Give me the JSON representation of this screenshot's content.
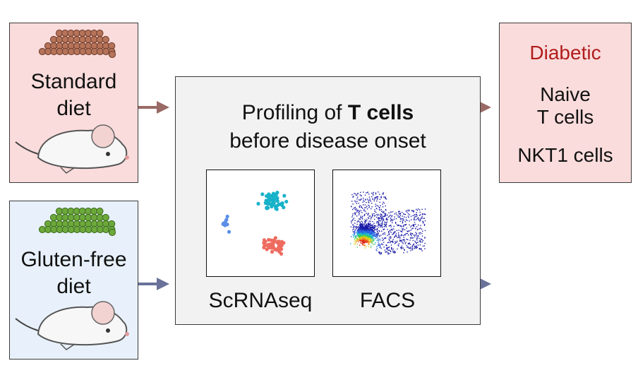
{
  "diets": [
    {
      "line1": "Standard",
      "line2": "diet",
      "pellet_color": "#b5735a",
      "pellet_edge": "#6e3b28"
    },
    {
      "line1": "Gluten-free",
      "line2": "diet",
      "pellet_color": "#6da83c",
      "pellet_edge": "#3b6b1c"
    }
  ],
  "profiling": {
    "title_prefix": "Profiling of ",
    "title_bold": "T cells",
    "title_line2": "before disease onset"
  },
  "methods": [
    {
      "label": "ScRNAseq"
    },
    {
      "label": "FACS"
    }
  ],
  "result": {
    "title": "Diabetic",
    "items": [
      "Naive",
      "T cells",
      "NKT1 cells"
    ]
  },
  "colors": {
    "arrow_standard": "#9a6a66",
    "arrow_glutenfree": "#6a729a",
    "cluster_blue": "#5b8ee8",
    "cluster_cyan": "#17b2c9",
    "cluster_red": "#ee6b5f"
  }
}
